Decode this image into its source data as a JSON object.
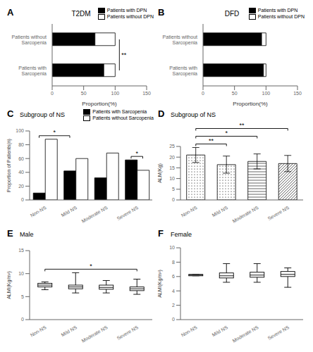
{
  "chart_data": [
    {
      "type": "bar",
      "panel_label": "A",
      "title": "T2DM",
      "orientation": "horizontal",
      "stacked": true,
      "legend": "upper right",
      "grid": false,
      "categories": [
        "Patients with\nSarcopenia",
        "Patients without\nSarcopenia"
      ],
      "series": [
        {
          "name": "Patients with DPN",
          "color": "black",
          "values": [
            82,
            68
          ]
        },
        {
          "name": "Patients without DPN",
          "color": "white",
          "values": [
            18,
            32
          ]
        }
      ],
      "xlabel": "Proportion(%)",
      "xlim": [
        0,
        150
      ],
      "xticks": [
        0,
        50,
        100,
        150
      ],
      "annotations": [
        {
          "text": "**",
          "between": [
            {
              "category": "Patients with\nSarcopenia"
            },
            {
              "category": "Patients without\nSarcopenia"
            }
          ]
        }
      ]
    },
    {
      "type": "bar",
      "panel_label": "B",
      "title": "DFD",
      "orientation": "horizontal",
      "stacked": true,
      "legend": "upper right",
      "grid": false,
      "categories": [
        "Patients with\nSarcopenia",
        "Patients without\nSarcopenia"
      ],
      "series": [
        {
          "name": "Patients with DPN",
          "color": "black",
          "values": [
            96,
            93
          ]
        },
        {
          "name": "Patients without DPN",
          "color": "white",
          "values": [
            4,
            7
          ]
        }
      ],
      "xlabel": "Proportion(%)",
      "xlim": [
        0,
        150
      ],
      "xticks": [
        0,
        50,
        100,
        150
      ]
    },
    {
      "type": "bar",
      "panel_label": "C",
      "subtitle": "Subgroup of NS",
      "legend": "upper right",
      "grid": false,
      "categories": [
        "Non-NS",
        "Mild NS",
        "Moderate NS",
        "Severe NS"
      ],
      "series": [
        {
          "name": "Patients with Sarcopenia",
          "color": "black",
          "values": [
            10,
            42,
            32,
            58
          ]
        },
        {
          "name": "Patients without Sarcopenia",
          "color": "white",
          "values": [
            88,
            60,
            68,
            43
          ]
        }
      ],
      "ylabel": "Proportion of Patients(n)",
      "ylim": [
        0,
        100
      ],
      "yticks": [
        0,
        20,
        40,
        60,
        80,
        100
      ],
      "annotations": [
        {
          "text": "*",
          "between": [
            {
              "category": "Non-NS",
              "series": "Patients with Sarcopenia"
            },
            {
              "category": "Mild NS",
              "series": "Patients with Sarcopenia"
            }
          ]
        },
        {
          "text": "*",
          "between": [
            {
              "category": "Severe NS",
              "series": "Patients with Sarcopenia"
            },
            {
              "category": "Severe NS",
              "series": "Patients without Sarcopenia"
            }
          ]
        }
      ]
    },
    {
      "type": "bar",
      "panel_label": "D",
      "subtitle": "Subgroup of NS",
      "grid": false,
      "categories": [
        "Non-NS",
        "Mild NS",
        "Moderate NS",
        "Severe NS"
      ],
      "values": [
        21.0,
        16.5,
        18.0,
        17.0
      ],
      "errors": [
        3.5,
        4.0,
        3.5,
        3.8
      ],
      "color": "white",
      "ylabel": "ALM(Kg)",
      "ylim": [
        0,
        25
      ],
      "yticks": [
        0,
        5,
        10,
        15,
        20,
        25
      ],
      "annotations": [
        {
          "text": "**",
          "between": [
            {
              "category": "Non-NS"
            },
            {
              "category": "Mild NS"
            }
          ]
        },
        {
          "text": "*",
          "between": [
            {
              "category": "Non-NS"
            },
            {
              "category": "Moderate NS"
            }
          ]
        },
        {
          "text": "**",
          "between": [
            {
              "category": "Non-NS"
            },
            {
              "category": "Severe NS"
            }
          ]
        }
      ]
    },
    {
      "type": "box",
      "panel_label": "E",
      "subtitle": "Male",
      "grid": false,
      "color": "white",
      "categories": [
        "Non-NS",
        "Mild NS",
        "Moderate NS",
        "Severe NS"
      ],
      "boxes": [
        {
          "q1": 7.1,
          "median": 7.5,
          "q3": 7.9,
          "whislo": 6.5,
          "whishi": 8.2
        },
        {
          "q1": 6.7,
          "median": 7.1,
          "q3": 7.5,
          "whislo": 5.8,
          "whishi": 10.2
        },
        {
          "q1": 6.6,
          "median": 7.0,
          "q3": 7.5,
          "whislo": 5.8,
          "whishi": 8.5
        },
        {
          "q1": 6.3,
          "median": 6.7,
          "q3": 7.1,
          "whislo": 5.5,
          "whishi": 8.8
        }
      ],
      "ylabel": "ALMI(Kg/m²)",
      "ylim": [
        0,
        15
      ],
      "yticks": [
        0,
        5,
        10,
        15
      ],
      "annotations": [
        {
          "text": "*",
          "between": [
            {
              "category": "Non-NS"
            },
            {
              "category": "Severe NS"
            }
          ]
        }
      ]
    },
    {
      "type": "box",
      "panel_label": "F",
      "subtitle": "Female",
      "grid": false,
      "color": "white",
      "categories": [
        "Non-NS",
        "Mild NS",
        "Moderate NS",
        "Severe NS"
      ],
      "boxes": [
        {
          "q1": 6.1,
          "median": 6.2,
          "q3": 6.3,
          "whislo": 6.1,
          "whishi": 6.3
        },
        {
          "q1": 5.8,
          "median": 6.1,
          "q3": 6.5,
          "whislo": 5.2,
          "whishi": 7.8
        },
        {
          "q1": 5.9,
          "median": 6.2,
          "q3": 6.6,
          "whislo": 5.2,
          "whishi": 7.8
        },
        {
          "q1": 6.0,
          "median": 6.3,
          "q3": 6.7,
          "whislo": 4.5,
          "whishi": 7.2
        }
      ],
      "ylabel": "ALMI(Kg/m²)",
      "ylim": [
        0,
        10
      ],
      "yticks": [
        0,
        2,
        4,
        6,
        8,
        10
      ]
    }
  ]
}
